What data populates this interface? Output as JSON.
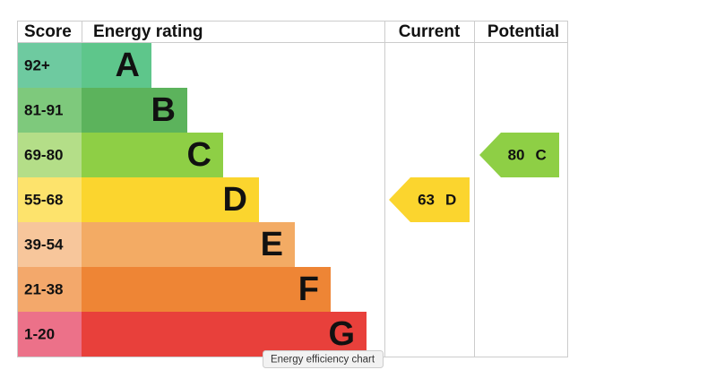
{
  "header": {
    "score": "Score",
    "rating": "Energy rating",
    "current": "Current",
    "potential": "Potential"
  },
  "bands": [
    {
      "score": "92+",
      "letter": "A",
      "color": "#5ec68b",
      "score_color": "#6ecaa0"
    },
    {
      "score": "81-91",
      "letter": "B",
      "color": "#5cb35c",
      "score_color": "#7ec97c"
    },
    {
      "score": "69-80",
      "letter": "C",
      "color": "#8ecf45",
      "score_color": "#b4de88"
    },
    {
      "score": "55-68",
      "letter": "D",
      "color": "#fbd52e",
      "score_color": "#fde36c"
    },
    {
      "score": "39-54",
      "letter": "E",
      "color": "#f3ab64",
      "score_color": "#f7c69b"
    },
    {
      "score": "21-38",
      "letter": "F",
      "color": "#ee8535",
      "score_color": "#f3a86b"
    },
    {
      "score": "1-20",
      "letter": "G",
      "color": "#e8403b",
      "score_color": "#ec7189"
    }
  ],
  "current": {
    "value": 63,
    "letter": "D"
  },
  "potential": {
    "value": 80,
    "letter": "C"
  },
  "tooltip": "Energy efficiency chart"
}
